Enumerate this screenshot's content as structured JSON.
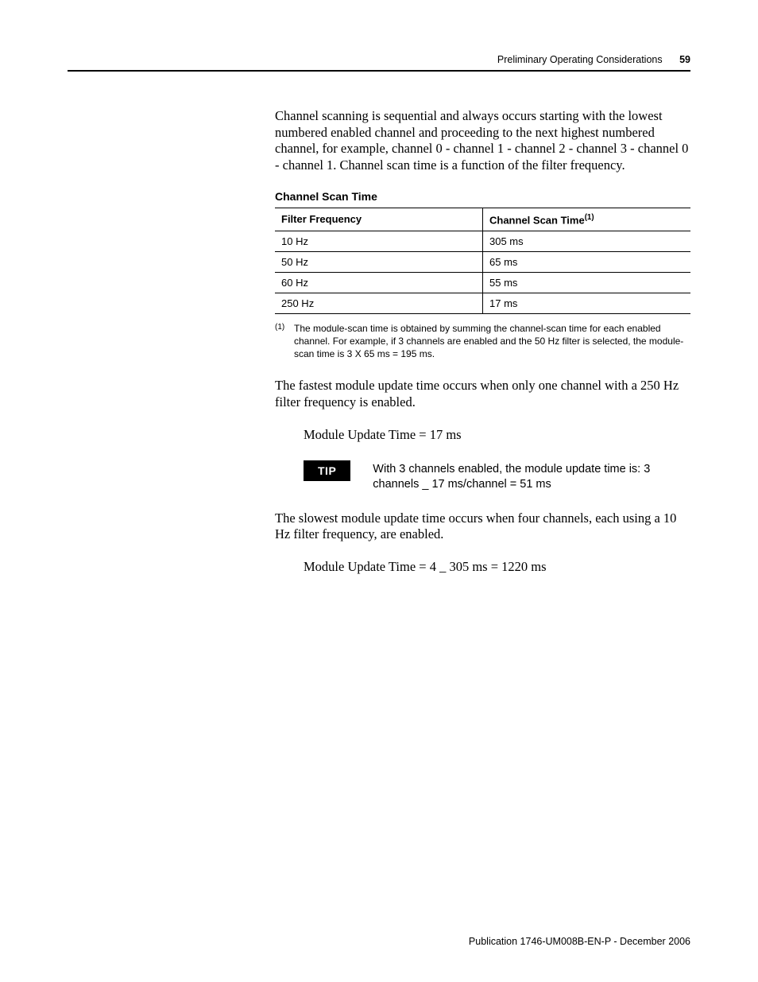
{
  "header": {
    "title": "Preliminary Operating Considerations",
    "page_number": "59"
  },
  "body": {
    "para1": "Channel scanning is sequential and always occurs starting with the lowest numbered enabled channel and proceeding to the next highest numbered channel, for example, channel 0 - channel 1 - channel 2 - channel 3 - channel 0 - channel 1. Channel scan time is a function of the filter frequency.",
    "table": {
      "caption": "Channel Scan Time",
      "columns": [
        "Filter Frequency",
        "Channel Scan Time"
      ],
      "header_sup": "(1)",
      "rows": [
        [
          "10 Hz",
          "305 ms"
        ],
        [
          "50 Hz",
          "65 ms"
        ],
        [
          "60 Hz",
          "55 ms"
        ],
        [
          "250 Hz",
          "17 ms"
        ]
      ]
    },
    "footnote": {
      "num": "(1)",
      "text": "The module-scan time is obtained by summing the channel-scan time for each enabled channel. For example, if 3 channels are enabled and the 50 Hz filter is selected, the module-scan time is 3 X 65 ms = 195 ms."
    },
    "para2": "The fastest module update time occurs when only one channel with a 250 Hz filter frequency is enabled.",
    "eq1": "Module Update Time = 17 ms",
    "tip": {
      "label": "TIP",
      "text": "With 3 channels enabled, the module update time is: 3 channels _ 17 ms/channel = 51 ms"
    },
    "para3": "The slowest module update time occurs when four channels, each using a 10 Hz filter frequency, are enabled.",
    "eq2": "Module Update Time = 4 _ 305 ms = 1220 ms"
  },
  "footer": {
    "text": "Publication 1746-UM008B-EN-P - December 2006"
  }
}
